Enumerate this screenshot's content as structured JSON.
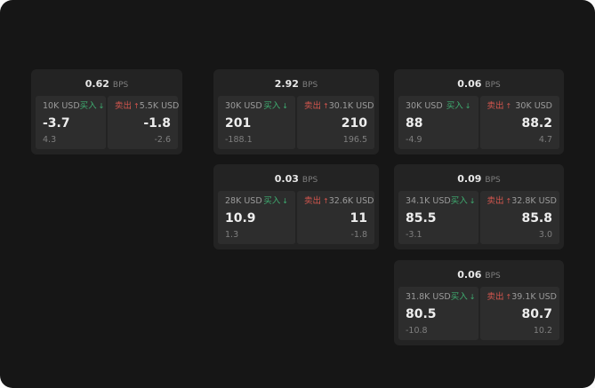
{
  "labels": {
    "buy": "买入",
    "sell": "卖出",
    "bps_suffix": "BPS"
  },
  "colors": {
    "background": "#161616",
    "card": "#232323",
    "panel": "#2d2d2d",
    "buy": "#3fae71",
    "sell": "#d4564e"
  },
  "cards": [
    {
      "bps": "0.62",
      "buy": {
        "size": "10K USD",
        "price": "-3.7",
        "sub": "4.3"
      },
      "sell": {
        "size": "5.5K USD",
        "price": "-1.8",
        "sub": "-2.6"
      }
    },
    {
      "bps": "2.92",
      "buy": {
        "size": "30K USD",
        "price": "201",
        "sub": "-188.1"
      },
      "sell": {
        "size": "30.1K USD",
        "price": "210",
        "sub": "196.5"
      }
    },
    {
      "bps": "0.06",
      "buy": {
        "size": "30K USD",
        "price": "88",
        "sub": "-4.9"
      },
      "sell": {
        "size": "30K USD",
        "price": "88.2",
        "sub": "4.7"
      }
    },
    {
      "bps": "0.03",
      "buy": {
        "size": "28K USD",
        "price": "10.9",
        "sub": "1.3"
      },
      "sell": {
        "size": "32.6K USD",
        "price": "11",
        "sub": "-1.8"
      }
    },
    {
      "bps": "0.09",
      "buy": {
        "size": "34.1K USD",
        "price": "85.5",
        "sub": "-3.1"
      },
      "sell": {
        "size": "32.8K USD",
        "price": "85.8",
        "sub": "3.0"
      }
    },
    {
      "bps": "0.06",
      "buy": {
        "size": "31.8K USD",
        "price": "80.5",
        "sub": "-10.8"
      },
      "sell": {
        "size": "39.1K USD",
        "price": "80.7",
        "sub": "10.2"
      }
    }
  ]
}
